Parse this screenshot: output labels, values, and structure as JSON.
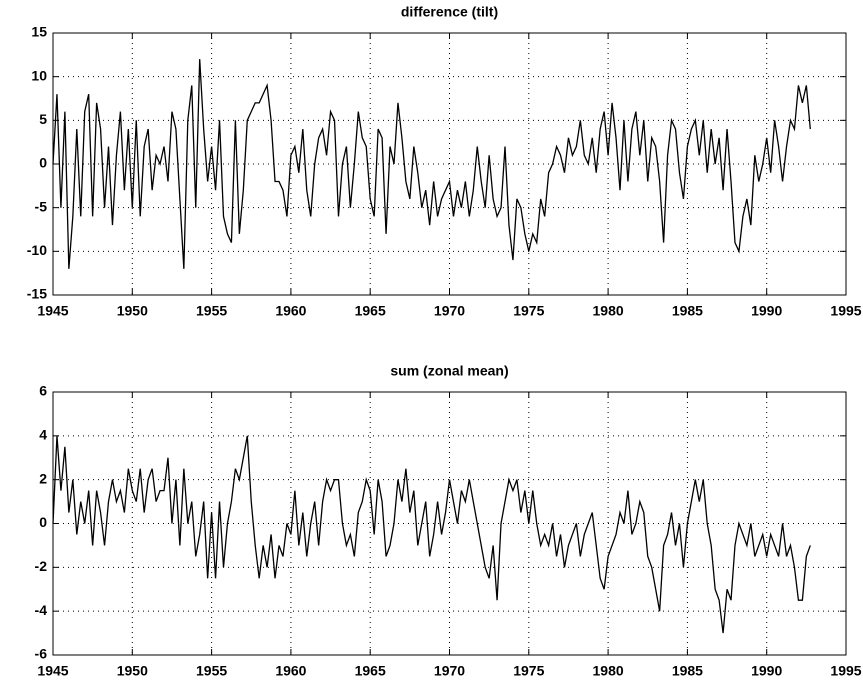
{
  "chart_data": [
    {
      "type": "line",
      "title": "difference (tilt)",
      "x": [
        1945,
        1945.25,
        1945.5,
        1945.75,
        1946,
        1946.25,
        1946.5,
        1946.75,
        1947,
        1947.25,
        1947.5,
        1947.75,
        1948,
        1948.25,
        1948.5,
        1948.75,
        1949,
        1949.25,
        1949.5,
        1949.75,
        1950,
        1950.25,
        1950.5,
        1950.75,
        1951,
        1951.25,
        1951.5,
        1951.75,
        1952,
        1952.25,
        1952.5,
        1952.75,
        1953,
        1953.25,
        1953.5,
        1953.75,
        1954,
        1954.25,
        1954.5,
        1954.75,
        1955,
        1955.25,
        1955.5,
        1955.75,
        1956,
        1956.25,
        1956.5,
        1956.75,
        1957,
        1957.25,
        1957.5,
        1957.75,
        1958,
        1958.25,
        1958.5,
        1958.75,
        1959,
        1959.25,
        1959.5,
        1959.75,
        1960,
        1960.25,
        1960.5,
        1960.75,
        1961,
        1961.25,
        1961.5,
        1961.75,
        1962,
        1962.25,
        1962.5,
        1962.75,
        1963,
        1963.25,
        1963.5,
        1963.75,
        1964,
        1964.25,
        1964.5,
        1964.75,
        1965,
        1965.25,
        1965.5,
        1965.75,
        1966,
        1966.25,
        1966.5,
        1966.75,
        1967,
        1967.25,
        1967.5,
        1967.75,
        1968,
        1968.25,
        1968.5,
        1968.75,
        1969,
        1969.25,
        1969.5,
        1969.75,
        1970,
        1970.25,
        1970.5,
        1970.75,
        1971,
        1971.25,
        1971.5,
        1971.75,
        1972,
        1972.25,
        1972.5,
        1972.75,
        1973,
        1973.25,
        1973.5,
        1973.75,
        1974,
        1974.25,
        1974.5,
        1974.75,
        1975,
        1975.25,
        1975.5,
        1975.75,
        1976,
        1976.25,
        1976.5,
        1976.75,
        1977,
        1977.25,
        1977.5,
        1977.75,
        1978,
        1978.25,
        1978.5,
        1978.75,
        1979,
        1979.25,
        1979.5,
        1979.75,
        1980,
        1980.25,
        1980.5,
        1980.75,
        1981,
        1981.25,
        1981.5,
        1981.75,
        1982,
        1982.25,
        1982.5,
        1982.75,
        1983,
        1983.25,
        1983.5,
        1983.75,
        1984,
        1984.25,
        1984.5,
        1984.75,
        1985,
        1985.25,
        1985.5,
        1985.75,
        1986,
        1986.25,
        1986.5,
        1986.75,
        1987,
        1987.25,
        1987.5,
        1987.75,
        1988,
        1988.25,
        1988.5,
        1988.75,
        1989,
        1989.25,
        1989.5,
        1989.75,
        1990,
        1990.25,
        1990.5,
        1990.75,
        1991,
        1991.25,
        1991.5,
        1991.75,
        1992,
        1992.25,
        1992.5,
        1992.75
      ],
      "series": [
        {
          "color": "#000000",
          "values": [
            0,
            8,
            -5,
            6,
            -12,
            -6,
            4,
            -6,
            6,
            8,
            -6,
            7,
            4,
            -5,
            2,
            -7,
            1,
            6,
            -3,
            4,
            -5,
            5,
            -6,
            2,
            4,
            -3,
            1,
            0,
            2,
            -2,
            6,
            4,
            -4,
            -12,
            5,
            9,
            -5,
            12,
            4,
            -2,
            2,
            -3,
            5,
            -6,
            -8,
            -9,
            5,
            -8,
            -3,
            5,
            6,
            7,
            7,
            8,
            9,
            5,
            -2,
            -2,
            -3,
            -6,
            1,
            2,
            -1,
            4,
            -3,
            -6,
            0,
            3,
            4,
            1,
            6,
            5,
            -6,
            0,
            2,
            -5,
            0,
            6,
            3,
            2,
            -4,
            -6,
            4,
            3,
            -8,
            2,
            0,
            7,
            3,
            -2,
            -4,
            2,
            -1,
            -5,
            -3,
            -7,
            -2,
            -6,
            -4,
            -3,
            -2,
            -6,
            -3,
            -5,
            -2,
            -6,
            -3,
            2,
            -2,
            -5,
            1,
            -4,
            -6,
            -5,
            2,
            -7,
            -11,
            -4,
            -5,
            -8,
            -10,
            -8,
            -9,
            -4,
            -6,
            -1,
            0,
            2,
            1,
            -1,
            3,
            1,
            2,
            5,
            1,
            0,
            3,
            -1,
            4,
            6,
            1,
            7,
            3,
            -3,
            5,
            -2,
            4,
            6,
            1,
            5,
            -2,
            3,
            2,
            -2,
            -9,
            1,
            5,
            4,
            -1,
            -4,
            2,
            4,
            5,
            1,
            5,
            -1,
            4,
            0,
            3,
            -3,
            4,
            -2,
            -9,
            -10,
            -6,
            -4,
            -7,
            1,
            -2,
            0,
            3,
            -1,
            5,
            2,
            -2,
            2,
            5,
            4,
            9,
            7,
            9,
            4
          ]
        }
      ],
      "xlim": [
        1945,
        1995
      ],
      "xticks": [
        1945,
        1950,
        1955,
        1960,
        1965,
        1970,
        1975,
        1980,
        1985,
        1990,
        1995
      ],
      "ylim": [
        -15,
        15
      ],
      "yticks": [
        -15,
        -10,
        -5,
        0,
        5,
        10,
        15
      ],
      "grid": true
    },
    {
      "type": "line",
      "title": "sum (zonal mean)",
      "x": [
        1945,
        1945.25,
        1945.5,
        1945.75,
        1946,
        1946.25,
        1946.5,
        1946.75,
        1947,
        1947.25,
        1947.5,
        1947.75,
        1948,
        1948.25,
        1948.5,
        1948.75,
        1949,
        1949.25,
        1949.5,
        1949.75,
        1950,
        1950.25,
        1950.5,
        1950.75,
        1951,
        1951.25,
        1951.5,
        1951.75,
        1952,
        1952.25,
        1952.5,
        1952.75,
        1953,
        1953.25,
        1953.5,
        1953.75,
        1954,
        1954.25,
        1954.5,
        1954.75,
        1955,
        1955.25,
        1955.5,
        1955.75,
        1956,
        1956.25,
        1956.5,
        1956.75,
        1957,
        1957.25,
        1957.5,
        1957.75,
        1958,
        1958.25,
        1958.5,
        1958.75,
        1959,
        1959.25,
        1959.5,
        1959.75,
        1960,
        1960.25,
        1960.5,
        1960.75,
        1961,
        1961.25,
        1961.5,
        1961.75,
        1962,
        1962.25,
        1962.5,
        1962.75,
        1963,
        1963.25,
        1963.5,
        1963.75,
        1964,
        1964.25,
        1964.5,
        1964.75,
        1965,
        1965.25,
        1965.5,
        1965.75,
        1966,
        1966.25,
        1966.5,
        1966.75,
        1967,
        1967.25,
        1967.5,
        1967.75,
        1968,
        1968.25,
        1968.5,
        1968.75,
        1969,
        1969.25,
        1969.5,
        1969.75,
        1970,
        1970.25,
        1970.5,
        1970.75,
        1971,
        1971.25,
        1971.5,
        1971.75,
        1972,
        1972.25,
        1972.5,
        1972.75,
        1973,
        1973.25,
        1973.5,
        1973.75,
        1974,
        1974.25,
        1974.5,
        1974.75,
        1975,
        1975.25,
        1975.5,
        1975.75,
        1976,
        1976.25,
        1976.5,
        1976.75,
        1977,
        1977.25,
        1977.5,
        1977.75,
        1978,
        1978.25,
        1978.5,
        1978.75,
        1979,
        1979.25,
        1979.5,
        1979.75,
        1980,
        1980.25,
        1980.5,
        1980.75,
        1981,
        1981.25,
        1981.5,
        1981.75,
        1982,
        1982.25,
        1982.5,
        1982.75,
        1983,
        1983.25,
        1983.5,
        1983.75,
        1984,
        1984.25,
        1984.5,
        1984.75,
        1985,
        1985.25,
        1985.5,
        1985.75,
        1986,
        1986.25,
        1986.5,
        1986.75,
        1987,
        1987.25,
        1987.5,
        1987.75,
        1988,
        1988.25,
        1988.5,
        1988.75,
        1989,
        1989.25,
        1989.5,
        1989.75,
        1990,
        1990.25,
        1990.5,
        1990.75,
        1991,
        1991.25,
        1991.5,
        1991.75,
        1992,
        1992.25,
        1992.5,
        1992.75
      ],
      "series": [
        {
          "color": "#000000",
          "values": [
            0,
            4,
            1.5,
            3.5,
            0.5,
            2,
            -0.5,
            1,
            0,
            1.5,
            -1,
            1.5,
            0.5,
            -1,
            1,
            2,
            1,
            1.5,
            0.5,
            2.5,
            1.5,
            1,
            2.5,
            0.5,
            2,
            2.5,
            1,
            1.5,
            1.5,
            3,
            0,
            2,
            -1,
            2.5,
            0,
            1,
            -1.5,
            -0.5,
            1,
            -2.5,
            0.5,
            -2.5,
            1,
            -2,
            0,
            1,
            2.5,
            2,
            3,
            4,
            1,
            -1,
            -2.5,
            -1,
            -2,
            -0.5,
            -2.5,
            -1,
            -1.5,
            0,
            -0.5,
            1.5,
            -1,
            0.5,
            -1.5,
            0,
            1,
            -1,
            1,
            2,
            1.5,
            2,
            2,
            0,
            -1,
            -0.5,
            -1.5,
            0.5,
            1,
            2,
            1.5,
            -0.5,
            2,
            1,
            -1.5,
            -1,
            0,
            2,
            1,
            2.5,
            0.5,
            1.5,
            -1,
            0,
            1,
            -1.5,
            -0.5,
            1,
            -0.5,
            0.5,
            2,
            1,
            0,
            1.5,
            1,
            2,
            1,
            0,
            -1,
            -2,
            -2.5,
            -1,
            -3.5,
            0,
            1,
            2,
            1.5,
            2,
            0.5,
            1.5,
            0,
            1.5,
            0,
            -1,
            -0.5,
            -1,
            0,
            -1.5,
            -0.5,
            -2,
            -1,
            -0.5,
            0,
            -1.5,
            -0.5,
            0,
            0.5,
            -1,
            -2.5,
            -3,
            -1.5,
            -1,
            -0.5,
            0.5,
            0,
            1.5,
            -0.5,
            0,
            1,
            0.5,
            -1.5,
            -2,
            -3,
            -4,
            -1,
            -0.5,
            0.5,
            -1,
            0,
            -2,
            0,
            1,
            2,
            1,
            2,
            0,
            -1,
            -3,
            -3.5,
            -5,
            -3,
            -3.5,
            -1,
            0,
            -0.5,
            -1,
            0,
            -1.5,
            -1,
            -0.5,
            -1.5,
            -0.5,
            -1,
            -1.5,
            0,
            -1.5,
            -1,
            -2,
            -3.5,
            -3.5,
            -1.5,
            -1
          ]
        }
      ],
      "xlim": [
        1945,
        1995
      ],
      "xticks": [
        1945,
        1950,
        1955,
        1960,
        1965,
        1970,
        1975,
        1980,
        1985,
        1990,
        1995
      ],
      "ylim": [
        -6,
        6
      ],
      "yticks": [
        -6,
        -4,
        -2,
        0,
        2,
        4,
        6
      ],
      "grid": true
    }
  ]
}
